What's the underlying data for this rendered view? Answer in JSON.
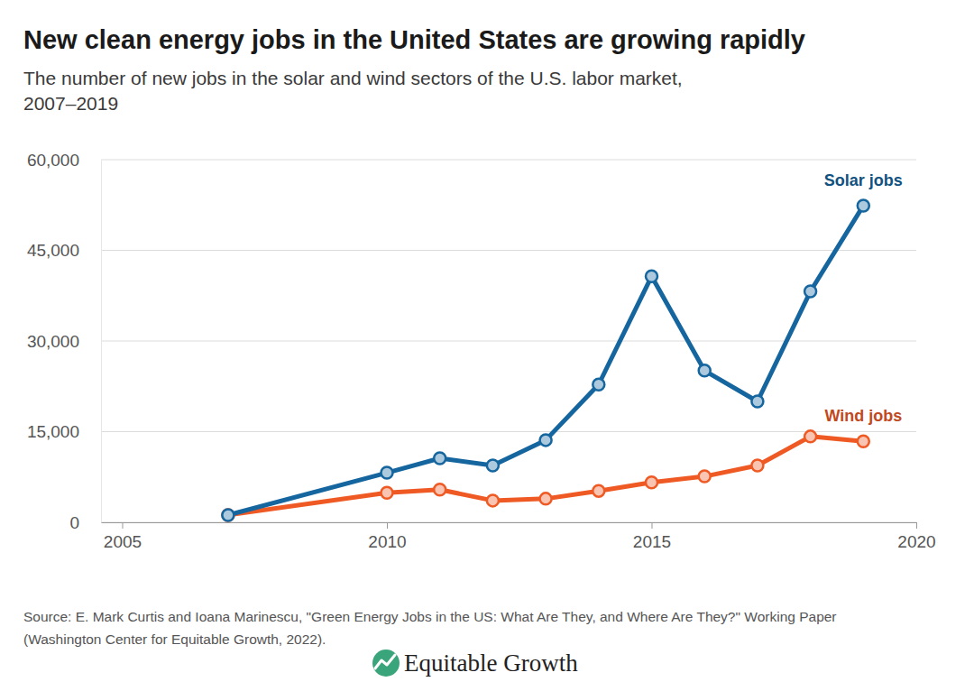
{
  "chart_data": {
    "type": "line",
    "title": "New clean energy jobs in the United States are growing rapidly",
    "subtitle": [
      "The number of new jobs in the solar and wind sectors of the U.S. labor market,",
      "2007–2019"
    ],
    "source": [
      "Source: E. Mark Curtis and Ioana Marinescu, \"Green Energy Jobs in the US: What Are They, and Where Are They?\" Working Paper",
      "(Washington Center for Equitable Growth, 2022)."
    ],
    "brand": "Equitable Growth",
    "x": [
      2007,
      2010,
      2011,
      2012,
      2013,
      2014,
      2015,
      2016,
      2017,
      2018,
      2019
    ],
    "series": [
      {
        "name": "Solar jobs",
        "color": "#15659f",
        "marker": "circle",
        "values": [
          1200,
          8200,
          10600,
          9400,
          13600,
          22800,
          40700,
          25100,
          20000,
          38200,
          52400
        ]
      },
      {
        "name": "Wind jobs",
        "color": "#ef5a24",
        "marker": "circle",
        "values": [
          1200,
          4900,
          5400,
          3600,
          3900,
          5200,
          6600,
          7600,
          9400,
          14200,
          13400
        ]
      }
    ],
    "xlim": [
      2004.6,
      2020
    ],
    "xticks": [
      2005,
      2010,
      2015,
      2020
    ],
    "ylim": [
      0,
      60000
    ],
    "yticks": [
      0,
      {
        "value": 15000,
        "label": "15,000"
      },
      {
        "value": 30000,
        "label": "30,000"
      },
      {
        "value": 45000,
        "label": "45,000"
      },
      {
        "value": 60000,
        "label": "60,000"
      }
    ],
    "grid": true
  }
}
